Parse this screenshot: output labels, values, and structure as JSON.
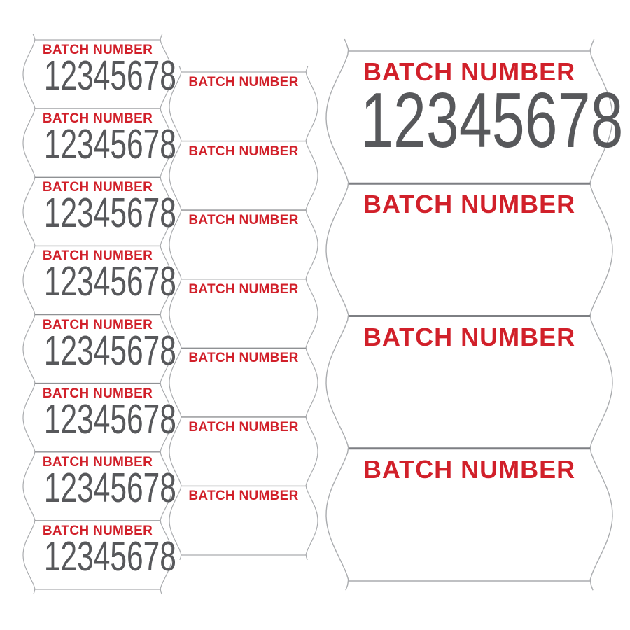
{
  "colors": {
    "header_red": "#d1202a",
    "value_gray": "#57585b",
    "outline_gray": "#aaacaf",
    "divider_gray": "#8f9194",
    "divider_dark_gray": "#7d7f83",
    "background": "#ffffff"
  },
  "strips": [
    {
      "name": "small-printed-strip",
      "labels": [
        {
          "header": "BATCH NUMBER",
          "value": "12345678"
        },
        {
          "header": "BATCH NUMBER",
          "value": "12345678"
        },
        {
          "header": "BATCH NUMBER",
          "value": "12345678"
        },
        {
          "header": "BATCH NUMBER",
          "value": "12345678"
        },
        {
          "header": "BATCH NUMBER",
          "value": "12345678"
        },
        {
          "header": "BATCH NUMBER",
          "value": "12345678"
        },
        {
          "header": "BATCH NUMBER",
          "value": "12345678"
        },
        {
          "header": "BATCH NUMBER",
          "value": "12345678"
        }
      ]
    },
    {
      "name": "small-blank-strip",
      "labels": [
        {
          "header": "BATCH NUMBER"
        },
        {
          "header": "BATCH NUMBER"
        },
        {
          "header": "BATCH NUMBER"
        },
        {
          "header": "BATCH NUMBER"
        },
        {
          "header": "BATCH NUMBER"
        },
        {
          "header": "BATCH NUMBER"
        },
        {
          "header": "BATCH NUMBER"
        }
      ]
    },
    {
      "name": "large-strip",
      "labels": [
        {
          "header": "BATCH NUMBER",
          "value": "12345678"
        },
        {
          "header": "BATCH NUMBER"
        },
        {
          "header": "BATCH NUMBER"
        },
        {
          "header": "BATCH NUMBER"
        }
      ]
    }
  ]
}
